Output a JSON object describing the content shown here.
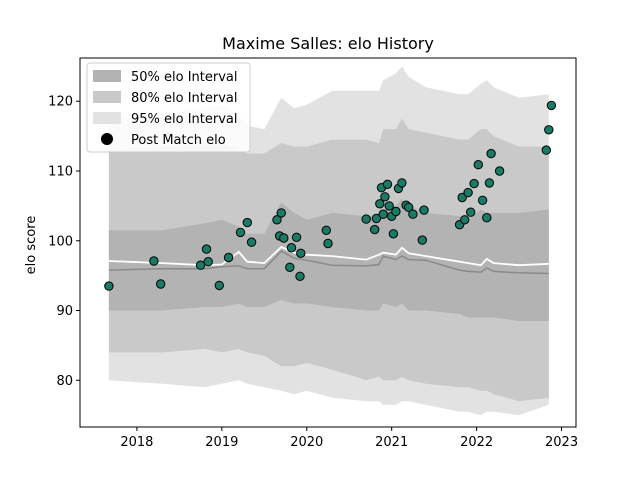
{
  "chart_data": {
    "type": "scatter",
    "title": "Maxime Salles: elo History",
    "xlabel": "",
    "ylabel": "elo score",
    "xlim": [
      2017.33,
      2023.17
    ],
    "ylim": [
      73.3,
      126.2
    ],
    "xticks": [
      2018,
      2019,
      2020,
      2021,
      2022,
      2023
    ],
    "xtick_labels": [
      "2018",
      "2019",
      "2020",
      "2021",
      "2022",
      "2023"
    ],
    "yticks": [
      80,
      90,
      100,
      110,
      120
    ],
    "ytick_labels": [
      "80",
      "90",
      "100",
      "110",
      "120"
    ],
    "grid": false,
    "legend": {
      "position": "top-left",
      "entries": [
        {
          "label": "50% elo Interval",
          "color": "#b3b3b3",
          "marker": "box"
        },
        {
          "label": "80% elo Interval",
          "color": "#c9c9c9",
          "marker": "box"
        },
        {
          "label": "95% elo Interval",
          "color": "#e2e2e2",
          "marker": "box"
        },
        {
          "label": "Post Match elo",
          "color": "#000000",
          "marker": "dot"
        }
      ]
    },
    "colors": {
      "band95": "#e2e2e2",
      "band80": "#c9c9c9",
      "band50": "#b3b3b3",
      "center_line": "#8a8a8a",
      "mean_line": "#ffffff",
      "points": "#1a7a65"
    },
    "bands": {
      "x": [
        2017.67,
        2018.3,
        2018.8,
        2019.0,
        2019.2,
        2019.3,
        2019.5,
        2019.7,
        2019.85,
        2020.0,
        2020.3,
        2020.7,
        2020.85,
        2020.9,
        2021.05,
        2021.12,
        2021.2,
        2021.4,
        2021.8,
        2021.9,
        2022.05,
        2022.12,
        2022.2,
        2022.5,
        2022.85
      ],
      "p95_upper": [
        117.5,
        118.0,
        119.0,
        119.5,
        118.0,
        116.5,
        116.0,
        120.5,
        119.0,
        119.5,
        121.5,
        121.5,
        121.5,
        123.0,
        124.0,
        125.0,
        123.5,
        122.0,
        121.0,
        121.0,
        122.5,
        123.0,
        122.0,
        120.5,
        121.0
      ],
      "p80_upper": [
        113.0,
        113.5,
        114.0,
        114.0,
        113.0,
        112.5,
        112.5,
        114.0,
        113.5,
        113.5,
        114.5,
        114.5,
        114.0,
        116.0,
        116.0,
        117.5,
        116.0,
        115.5,
        114.5,
        114.5,
        116.0,
        116.0,
        115.0,
        113.5,
        113.5
      ],
      "p50_upper": [
        101.5,
        101.5,
        102.5,
        103.0,
        102.0,
        101.0,
        101.0,
        105.5,
        104.0,
        103.0,
        104.0,
        103.5,
        103.5,
        104.5,
        105.0,
        106.0,
        105.0,
        104.0,
        103.5,
        103.0,
        104.5,
        104.0,
        104.0,
        104.0,
        104.5
      ],
      "center": [
        95.8,
        96.0,
        96.0,
        96.3,
        96.4,
        96.0,
        96.0,
        98.5,
        97.5,
        97.2,
        96.5,
        96.4,
        96.6,
        97.8,
        97.3,
        97.8,
        97.3,
        97.2,
        95.8,
        95.6,
        95.5,
        96.1,
        95.6,
        95.4,
        95.3
      ],
      "mean": [
        97.1,
        96.8,
        96.5,
        96.6,
        98.4,
        97.0,
        96.8,
        99.1,
        98.3,
        98.0,
        97.8,
        97.3,
        98.0,
        98.3,
        98.0,
        99.0,
        98.2,
        97.8,
        97.0,
        96.8,
        96.5,
        97.4,
        96.8,
        96.5,
        96.7
      ],
      "p50_lower": [
        90.0,
        90.0,
        90.5,
        90.5,
        91.0,
        90.5,
        90.5,
        91.5,
        91.0,
        91.0,
        90.5,
        90.0,
        90.0,
        91.0,
        90.5,
        91.0,
        90.0,
        90.0,
        89.5,
        89.0,
        89.0,
        89.0,
        89.0,
        88.5,
        88.5
      ],
      "p80_lower": [
        84.0,
        84.0,
        84.5,
        84.0,
        84.5,
        84.0,
        83.5,
        82.0,
        82.0,
        82.5,
        81.5,
        80.0,
        80.5,
        80.0,
        80.0,
        80.5,
        80.0,
        79.5,
        79.0,
        79.0,
        78.5,
        78.5,
        78.0,
        77.0,
        77.5
      ],
      "p95_lower": [
        80.0,
        79.5,
        79.0,
        79.5,
        80.0,
        79.5,
        79.0,
        78.5,
        78.0,
        78.5,
        77.5,
        77.0,
        77.0,
        76.5,
        76.5,
        77.0,
        77.0,
        76.5,
        75.5,
        75.5,
        75.0,
        75.5,
        75.5,
        75.0,
        76.5
      ]
    },
    "points": {
      "x": [
        2017.67,
        2018.2,
        2018.28,
        2018.75,
        2018.82,
        2018.84,
        2018.97,
        2019.08,
        2019.22,
        2019.3,
        2019.35,
        2019.65,
        2019.68,
        2019.7,
        2019.73,
        2019.8,
        2019.82,
        2019.88,
        2019.92,
        2019.93,
        2020.23,
        2020.25,
        2020.7,
        2020.8,
        2020.82,
        2020.86,
        2020.88,
        2020.9,
        2020.92,
        2020.95,
        2020.97,
        2021.0,
        2021.02,
        2021.05,
        2021.08,
        2021.12,
        2021.17,
        2021.2,
        2021.25,
        2021.36,
        2021.38,
        2021.8,
        2021.83,
        2021.86,
        2021.9,
        2021.93,
        2021.97,
        2022.02,
        2022.07,
        2022.12,
        2022.15,
        2022.17,
        2022.27,
        2022.82,
        2022.85,
        2022.88
      ],
      "y": [
        93.5,
        97.1,
        93.8,
        96.5,
        98.8,
        97.0,
        93.6,
        97.6,
        101.2,
        102.6,
        99.8,
        103.0,
        100.7,
        104.0,
        100.4,
        96.2,
        99.0,
        100.5,
        94.9,
        98.2,
        101.5,
        99.6,
        103.1,
        101.6,
        103.2,
        105.3,
        107.6,
        103.8,
        106.3,
        108.1,
        105.0,
        103.5,
        101.0,
        104.2,
        107.5,
        108.3,
        105.1,
        104.8,
        103.8,
        100.1,
        104.4,
        102.3,
        106.2,
        103.0,
        106.9,
        104.1,
        108.2,
        110.9,
        105.8,
        103.3,
        108.3,
        112.5,
        110.0,
        113.0,
        115.9,
        119.4
      ]
    }
  }
}
